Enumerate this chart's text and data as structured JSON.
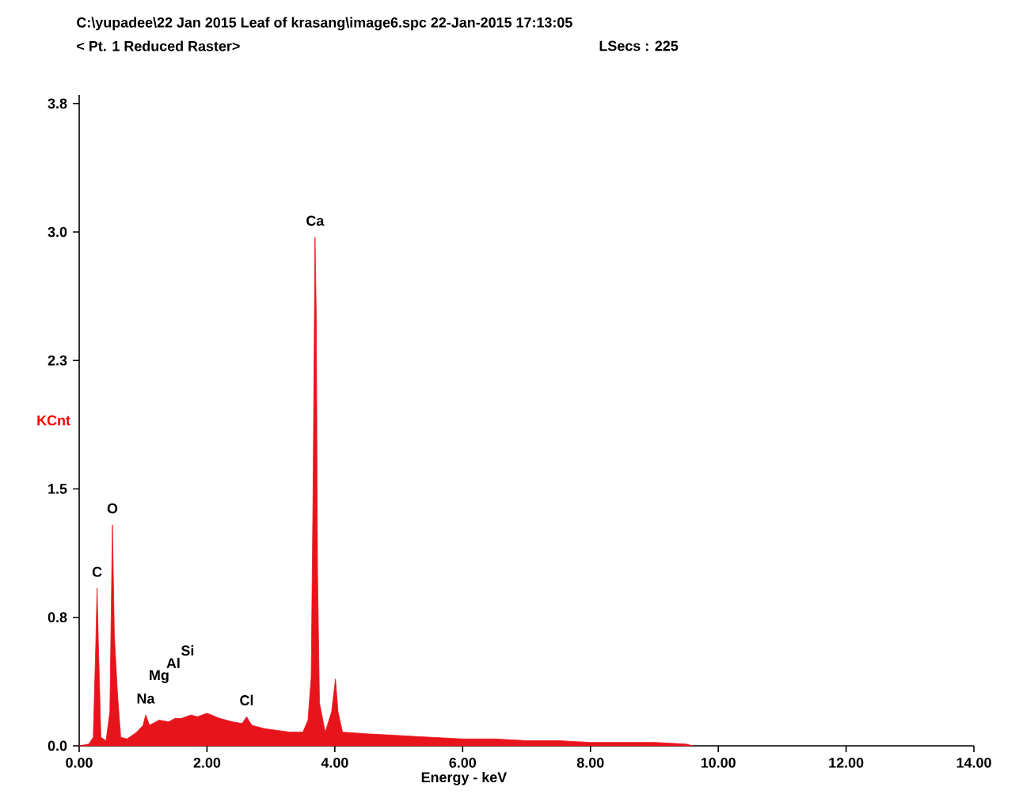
{
  "chart_data": {
    "type": "area",
    "title": "C:\\yupadee\\22 Jan 2015 Leaf of krasang\\image6.spc  22-Jan-2015 17:13:05",
    "subtitle": "< Pt. 1 Reduced Raster>",
    "xlabel": "Energy - keV",
    "ylabel": "KCnt",
    "xlim": [
      0,
      14
    ],
    "ylim": [
      0,
      3.8
    ],
    "xticks": [
      {
        "value": 0,
        "label": "0.00"
      },
      {
        "value": 2,
        "label": "2.00"
      },
      {
        "value": 4,
        "label": "4.00"
      },
      {
        "value": 6,
        "label": "6.00"
      },
      {
        "value": 8,
        "label": "8.00"
      },
      {
        "value": 10,
        "label": "10.00"
      },
      {
        "value": 12,
        "label": "12.00"
      },
      {
        "value": 14,
        "label": "14.00"
      }
    ],
    "yticks": [
      {
        "value": 0,
        "label": "0.0"
      },
      {
        "value": 0.75,
        "label": "0.8"
      },
      {
        "value": 1.5,
        "label": "1.5"
      },
      {
        "value": 2.25,
        "label": "2.3"
      },
      {
        "value": 3.0,
        "label": "3.0"
      },
      {
        "value": 3.75,
        "label": "3.8"
      }
    ],
    "grid": false,
    "series": [
      {
        "color": "#e8141c",
        "x": [
          0,
          0.15,
          0.22,
          0.26,
          0.28,
          0.3,
          0.34,
          0.42,
          0.48,
          0.52,
          0.55,
          0.6,
          0.65,
          0.75,
          0.9,
          1.0,
          1.04,
          1.1,
          1.2,
          1.25,
          1.4,
          1.5,
          1.6,
          1.75,
          1.85,
          2.0,
          2.2,
          2.4,
          2.55,
          2.62,
          2.7,
          2.9,
          3.1,
          3.3,
          3.5,
          3.58,
          3.63,
          3.66,
          3.69,
          3.71,
          3.73,
          3.76,
          3.85,
          3.95,
          4.01,
          4.05,
          4.12,
          4.5,
          5.0,
          5.5,
          6.0,
          6.5,
          7.0,
          7.5,
          8.0,
          8.5,
          9.0,
          9.5,
          9.6
        ],
        "values": [
          0,
          0.01,
          0.05,
          0.6,
          0.92,
          0.6,
          0.05,
          0.03,
          0.2,
          1.29,
          0.65,
          0.3,
          0.05,
          0.04,
          0.08,
          0.12,
          0.18,
          0.12,
          0.14,
          0.15,
          0.14,
          0.16,
          0.16,
          0.18,
          0.17,
          0.19,
          0.16,
          0.14,
          0.13,
          0.17,
          0.12,
          0.1,
          0.09,
          0.08,
          0.08,
          0.15,
          0.4,
          1.5,
          2.97,
          2.5,
          1.0,
          0.25,
          0.08,
          0.2,
          0.39,
          0.2,
          0.08,
          0.07,
          0.06,
          0.05,
          0.04,
          0.04,
          0.03,
          0.03,
          0.02,
          0.02,
          0.02,
          0.01,
          0
        ]
      }
    ],
    "annotations": [
      "LSecs :  225",
      {
        "text": "C",
        "x": 0.28,
        "y": 0.92
      },
      {
        "text": "O",
        "x": 0.52,
        "y": 1.29
      },
      {
        "text": "Na",
        "x": 1.04,
        "y": 0.18
      },
      {
        "text": "Mg",
        "x": 1.25,
        "y": 0.15
      },
      "Al",
      "Si",
      {
        "text": "Cl",
        "x": 2.62,
        "y": 0.17
      },
      {
        "text": "Ca",
        "x": 3.69,
        "y": 2.97
      }
    ]
  }
}
